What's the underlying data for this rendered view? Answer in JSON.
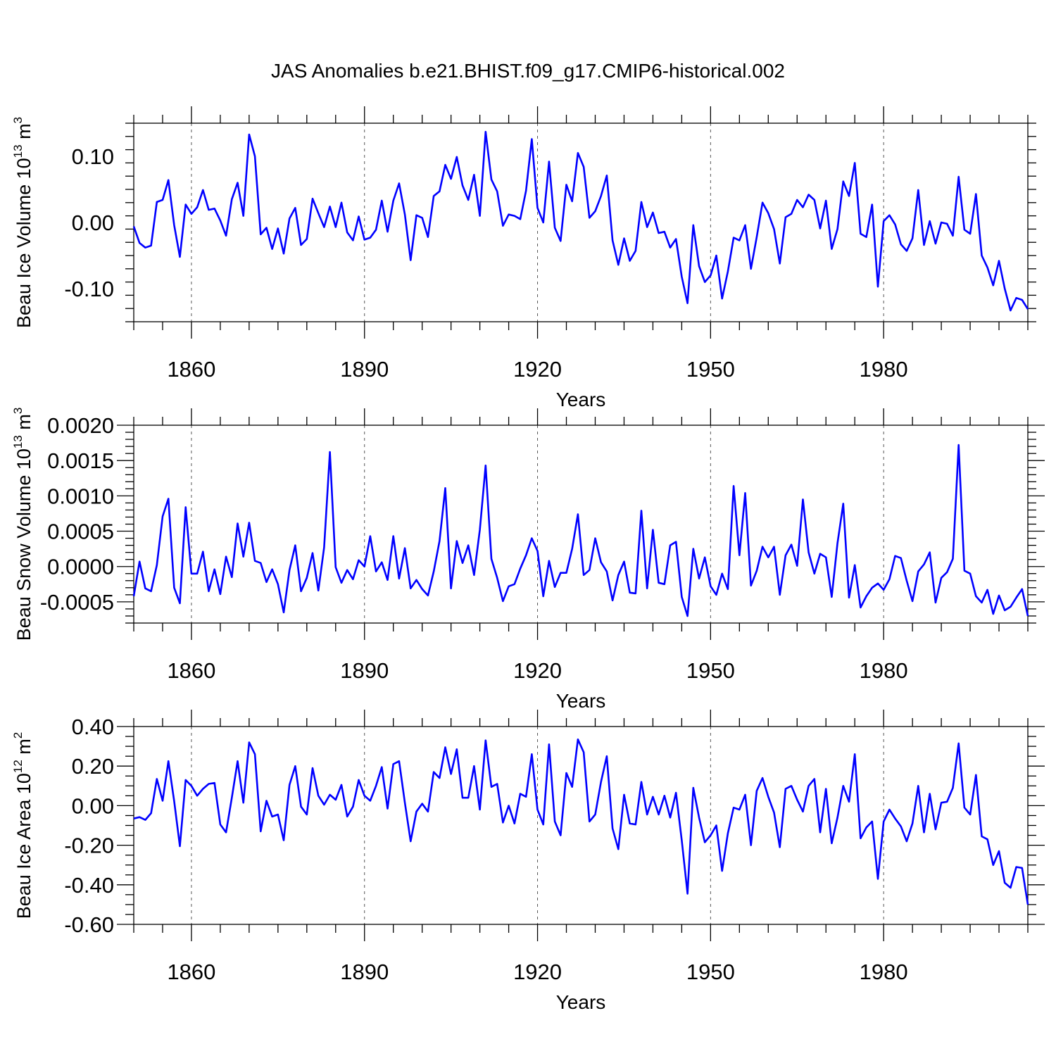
{
  "title": "JAS Anomalies b.e21.BHIST.f09_g17.CMIP6-historical.002",
  "colors": {
    "line": "#0000ff",
    "axis": "#000000",
    "grid": "#555555"
  },
  "chart_data": [
    {
      "type": "line",
      "ylabel_main": "Beau Ice Volume 10",
      "ylabel_sup": "13",
      "ylabel_unit": " m",
      "ylabel_unit_sup": "3",
      "xlabel": "Years",
      "xlim": [
        1850,
        2005
      ],
      "ylim": [
        -0.15,
        0.15
      ],
      "xticks": [
        1860,
        1890,
        1920,
        1950,
        1980
      ],
      "xtick_labels": [
        "1860",
        "1890",
        "1920",
        "1950",
        "1980"
      ],
      "xminor_step": 5,
      "yticks": [
        -0.1,
        0.0,
        0.1
      ],
      "ytick_labels": [
        "-0.10",
        "0.00",
        "0.10"
      ],
      "yminor_step": 0.02,
      "x": [
        1850,
        1851,
        1852,
        1853,
        1854,
        1855,
        1856,
        1857,
        1858,
        1859,
        1860,
        1861,
        1862,
        1863,
        1864,
        1865,
        1866,
        1867,
        1868,
        1869,
        1870,
        1871,
        1872,
        1873,
        1874,
        1875,
        1876,
        1877,
        1878,
        1879,
        1880,
        1881,
        1882,
        1883,
        1884,
        1885,
        1886,
        1887,
        1888,
        1889,
        1890,
        1891,
        1892,
        1893,
        1894,
        1895,
        1896,
        1897,
        1898,
        1899,
        1900,
        1901,
        1902,
        1903,
        1904,
        1905,
        1906,
        1907,
        1908,
        1909,
        1910,
        1911,
        1912,
        1913,
        1914,
        1915,
        1916,
        1917,
        1918,
        1919,
        1920,
        1921,
        1922,
        1923,
        1924,
        1925,
        1926,
        1927,
        1928,
        1929,
        1930,
        1931,
        1932,
        1933,
        1934,
        1935,
        1936,
        1937,
        1938,
        1939,
        1940,
        1941,
        1942,
        1943,
        1944,
        1945,
        1946,
        1947,
        1948,
        1949,
        1950,
        1951,
        1952,
        1953,
        1954,
        1955,
        1956,
        1957,
        1958,
        1959,
        1960,
        1961,
        1962,
        1963,
        1964,
        1965,
        1966,
        1967,
        1968,
        1969,
        1970,
        1971,
        1972,
        1973,
        1974,
        1975,
        1976,
        1977,
        1978,
        1979,
        1980,
        1981,
        1982,
        1983,
        1984,
        1985,
        1986,
        1987,
        1988,
        1989,
        1990,
        1991,
        1992,
        1993,
        1994,
        1995,
        1996,
        1997,
        1998,
        1999,
        2000,
        2001,
        2002,
        2003,
        2004,
        2005
      ],
      "values": [
        -0.006,
        -0.031,
        -0.038,
        -0.035,
        0.031,
        0.034,
        0.064,
        -0.004,
        -0.052,
        0.027,
        0.013,
        0.023,
        0.049,
        0.019,
        0.021,
        0.003,
        -0.02,
        0.035,
        0.06,
        0.01,
        0.133,
        0.1,
        -0.018,
        -0.008,
        -0.04,
        -0.009,
        -0.047,
        0.006,
        0.022,
        -0.034,
        -0.025,
        0.036,
        0.014,
        -0.007,
        0.024,
        -0.007,
        0.03,
        -0.015,
        -0.027,
        0.009,
        -0.026,
        -0.023,
        -0.011,
        0.033,
        -0.014,
        0.033,
        0.059,
        0.012,
        -0.057,
        0.011,
        0.007,
        -0.022,
        0.04,
        0.047,
        0.087,
        0.066,
        0.099,
        0.056,
        0.034,
        0.072,
        0.01,
        0.137,
        0.065,
        0.047,
        -0.005,
        0.012,
        0.01,
        0.005,
        0.048,
        0.126,
        0.022,
        0.0,
        0.092,
        -0.008,
        -0.028,
        0.057,
        0.032,
        0.105,
        0.084,
        0.007,
        0.017,
        0.04,
        0.071,
        -0.027,
        -0.064,
        -0.024,
        -0.058,
        -0.043,
        0.031,
        -0.007,
        0.015,
        -0.016,
        -0.014,
        -0.038,
        -0.025,
        -0.082,
        -0.122,
        -0.004,
        -0.066,
        -0.09,
        -0.08,
        -0.05,
        -0.115,
        -0.074,
        -0.023,
        -0.027,
        -0.004,
        -0.07,
        -0.022,
        0.03,
        0.014,
        -0.01,
        -0.062,
        0.008,
        0.013,
        0.034,
        0.023,
        0.042,
        0.034,
        -0.009,
        0.033,
        -0.04,
        -0.01,
        0.062,
        0.04,
        0.09,
        -0.017,
        -0.022,
        0.027,
        -0.097,
        0.002,
        0.011,
        -0.003,
        -0.033,
        -0.043,
        -0.024,
        0.049,
        -0.034,
        0.002,
        -0.032,
        0.0,
        -0.002,
        -0.02,
        0.069,
        -0.011,
        -0.017,
        0.043,
        -0.05,
        -0.068,
        -0.095,
        -0.058,
        -0.1,
        -0.133,
        -0.114,
        -0.117,
        -0.131
      ]
    },
    {
      "type": "line",
      "ylabel_main": "Beau Snow Volume 10",
      "ylabel_sup": "13",
      "ylabel_unit": " m",
      "ylabel_unit_sup": "3",
      "xlabel": "Years",
      "xlim": [
        1850,
        2005
      ],
      "ylim": [
        -0.0008,
        0.002
      ],
      "xticks": [
        1860,
        1890,
        1920,
        1950,
        1980
      ],
      "xtick_labels": [
        "1860",
        "1890",
        "1920",
        "1950",
        "1980"
      ],
      "xminor_step": 5,
      "yticks": [
        -0.0005,
        0.0,
        0.0005,
        0.001,
        0.0015,
        0.002
      ],
      "ytick_labels": [
        "-0.0005",
        "0.0000",
        "0.0005",
        "0.0010",
        "0.0015",
        "0.0020"
      ],
      "yminor_step": 0.0001,
      "x": [
        1850,
        1851,
        1852,
        1853,
        1854,
        1855,
        1856,
        1857,
        1858,
        1859,
        1860,
        1861,
        1862,
        1863,
        1864,
        1865,
        1866,
        1867,
        1868,
        1869,
        1870,
        1871,
        1872,
        1873,
        1874,
        1875,
        1876,
        1877,
        1878,
        1879,
        1880,
        1881,
        1882,
        1883,
        1884,
        1885,
        1886,
        1887,
        1888,
        1889,
        1890,
        1891,
        1892,
        1893,
        1894,
        1895,
        1896,
        1897,
        1898,
        1899,
        1900,
        1901,
        1902,
        1903,
        1904,
        1905,
        1906,
        1907,
        1908,
        1909,
        1910,
        1911,
        1912,
        1913,
        1914,
        1915,
        1916,
        1917,
        1918,
        1919,
        1920,
        1921,
        1922,
        1923,
        1924,
        1925,
        1926,
        1927,
        1928,
        1929,
        1930,
        1931,
        1932,
        1933,
        1934,
        1935,
        1936,
        1937,
        1938,
        1939,
        1940,
        1941,
        1942,
        1943,
        1944,
        1945,
        1946,
        1947,
        1948,
        1949,
        1950,
        1951,
        1952,
        1953,
        1954,
        1955,
        1956,
        1957,
        1958,
        1959,
        1960,
        1961,
        1962,
        1963,
        1964,
        1965,
        1966,
        1967,
        1968,
        1969,
        1970,
        1971,
        1972,
        1973,
        1974,
        1975,
        1976,
        1977,
        1978,
        1979,
        1980,
        1981,
        1982,
        1983,
        1984,
        1985,
        1986,
        1987,
        1988,
        1989,
        1990,
        1991,
        1992,
        1993,
        1994,
        1995,
        1996,
        1997,
        1998,
        1999,
        2000,
        2001,
        2002,
        2003,
        2004,
        2005
      ],
      "values": [
        -0.00042,
        7e-05,
        -0.00031,
        -0.00035,
        2e-05,
        0.00071,
        0.00096,
        -0.0003,
        -0.00052,
        0.00084,
        -0.0001,
        -0.0001,
        0.00021,
        -0.00035,
        -4e-05,
        -0.00039,
        0.00014,
        -0.00015,
        0.00061,
        0.00014,
        0.00062,
        8e-05,
        5e-05,
        -0.00022,
        -4e-05,
        -0.00025,
        -0.00065,
        -5e-05,
        0.0003,
        -0.00035,
        -0.00016,
        0.00019,
        -0.00034,
        0.00027,
        0.00162,
        -1e-05,
        -0.00023,
        -5e-05,
        -0.00018,
        9e-05,
        0.0,
        0.00043,
        -7e-05,
        6e-05,
        -0.00019,
        0.00043,
        -0.00017,
        0.00026,
        -0.00031,
        -0.00019,
        -0.00032,
        -0.00041,
        -7e-05,
        0.00036,
        0.00111,
        -0.00031,
        0.00036,
        5e-05,
        0.0003,
        -0.00012,
        0.00052,
        0.00143,
        0.00011,
        -0.00016,
        -0.00049,
        -0.00028,
        -0.00025,
        -3e-05,
        0.00016,
        0.0004,
        0.00022,
        -0.00042,
        8e-05,
        -0.00029,
        -9e-05,
        -9e-05,
        0.00025,
        0.00074,
        -0.00012,
        -5e-05,
        0.0004,
        6e-05,
        -7e-05,
        -0.00048,
        -0.00012,
        7e-05,
        -0.00037,
        -0.00038,
        0.00079,
        -0.00031,
        0.00052,
        -0.00023,
        -0.00025,
        0.0003,
        0.00035,
        -0.00043,
        -0.0007,
        0.00025,
        -0.00017,
        0.00013,
        -0.00028,
        -0.0004,
        -0.0001,
        -0.00032,
        0.00114,
        0.00016,
        0.00104,
        -0.00027,
        -6e-05,
        0.00028,
        0.00013,
        0.00028,
        -0.0004,
        0.00016,
        0.00031,
        1e-05,
        0.00095,
        0.0002,
        -0.0001,
        0.00018,
        0.00013,
        -0.00043,
        0.00033,
        0.00089,
        -0.00044,
        2e-05,
        -0.00058,
        -0.00042,
        -0.0003,
        -0.00024,
        -0.00033,
        -0.00018,
        0.00015,
        0.00012,
        -0.0002,
        -0.00049,
        -7e-05,
        3e-05,
        0.0002,
        -0.00051,
        -0.00016,
        -8e-05,
        0.00011,
        0.00172,
        -6e-05,
        -0.0001,
        -0.00042,
        -0.00051,
        -0.00033,
        -0.00067,
        -0.00041,
        -0.00062,
        -0.00057,
        -0.00044,
        -0.00032,
        -0.0007
      ]
    },
    {
      "type": "line",
      "ylabel_main": "Beau Ice Area 10",
      "ylabel_sup": "12",
      "ylabel_unit": " m",
      "ylabel_unit_sup": "2",
      "xlabel": "Years",
      "xlim": [
        1850,
        2005
      ],
      "ylim": [
        -0.6,
        0.4
      ],
      "xticks": [
        1860,
        1890,
        1920,
        1950,
        1980
      ],
      "xtick_labels": [
        "1860",
        "1890",
        "1920",
        "1950",
        "1980"
      ],
      "xminor_step": 5,
      "yticks": [
        -0.6,
        -0.4,
        -0.2,
        0.0,
        0.2,
        0.4
      ],
      "ytick_labels": [
        "-0.60",
        "-0.40",
        "-0.20",
        "0.00",
        "0.20",
        "0.40"
      ],
      "yminor_step": 0.05,
      "x": [
        1850,
        1851,
        1852,
        1853,
        1854,
        1855,
        1856,
        1857,
        1858,
        1859,
        1860,
        1861,
        1862,
        1863,
        1864,
        1865,
        1866,
        1867,
        1868,
        1869,
        1870,
        1871,
        1872,
        1873,
        1874,
        1875,
        1876,
        1877,
        1878,
        1879,
        1880,
        1881,
        1882,
        1883,
        1884,
        1885,
        1886,
        1887,
        1888,
        1889,
        1890,
        1891,
        1892,
        1893,
        1894,
        1895,
        1896,
        1897,
        1898,
        1899,
        1900,
        1901,
        1902,
        1903,
        1904,
        1905,
        1906,
        1907,
        1908,
        1909,
        1910,
        1911,
        1912,
        1913,
        1914,
        1915,
        1916,
        1917,
        1918,
        1919,
        1920,
        1921,
        1922,
        1923,
        1924,
        1925,
        1926,
        1927,
        1928,
        1929,
        1930,
        1931,
        1932,
        1933,
        1934,
        1935,
        1936,
        1937,
        1938,
        1939,
        1940,
        1941,
        1942,
        1943,
        1944,
        1945,
        1946,
        1947,
        1948,
        1949,
        1950,
        1951,
        1952,
        1953,
        1954,
        1955,
        1956,
        1957,
        1958,
        1959,
        1960,
        1961,
        1962,
        1963,
        1964,
        1965,
        1966,
        1967,
        1968,
        1969,
        1970,
        1971,
        1972,
        1973,
        1974,
        1975,
        1976,
        1977,
        1978,
        1979,
        1980,
        1981,
        1982,
        1983,
        1984,
        1985,
        1986,
        1987,
        1988,
        1989,
        1990,
        1991,
        1992,
        1993,
        1994,
        1995,
        1996,
        1997,
        1998,
        1999,
        2000,
        2001,
        2002,
        2003,
        2004,
        2005
      ],
      "values": [
        -0.065,
        -0.058,
        -0.072,
        -0.038,
        0.135,
        0.025,
        0.225,
        0.023,
        -0.205,
        0.13,
        0.1,
        0.05,
        0.085,
        0.11,
        0.115,
        -0.095,
        -0.135,
        0.04,
        0.225,
        0.015,
        0.32,
        0.26,
        -0.13,
        0.025,
        -0.055,
        -0.045,
        -0.175,
        0.105,
        0.2,
        -0.005,
        -0.045,
        0.19,
        0.05,
        0.005,
        0.055,
        0.03,
        0.105,
        -0.055,
        -0.005,
        0.13,
        0.05,
        0.025,
        0.1,
        0.195,
        -0.015,
        0.21,
        0.225,
        0.015,
        -0.18,
        -0.03,
        0.01,
        -0.03,
        0.17,
        0.14,
        0.295,
        0.16,
        0.285,
        0.04,
        0.04,
        0.2,
        -0.02,
        0.33,
        0.095,
        0.11,
        -0.085,
        0.0,
        -0.09,
        0.06,
        0.045,
        0.26,
        -0.02,
        -0.095,
        0.31,
        -0.08,
        -0.15,
        0.165,
        0.095,
        0.335,
        0.27,
        -0.08,
        -0.045,
        0.12,
        0.25,
        -0.115,
        -0.22,
        0.055,
        -0.09,
        -0.095,
        0.12,
        -0.045,
        0.045,
        -0.045,
        0.05,
        -0.06,
        0.065,
        -0.175,
        -0.445,
        0.09,
        -0.06,
        -0.185,
        -0.15,
        -0.1,
        -0.33,
        -0.14,
        -0.01,
        -0.02,
        0.055,
        -0.2,
        0.075,
        0.14,
        0.045,
        -0.035,
        -0.21,
        0.085,
        0.1,
        0.03,
        -0.03,
        0.1,
        0.135,
        -0.135,
        0.085,
        -0.19,
        -0.06,
        0.1,
        0.02,
        0.26,
        -0.165,
        -0.11,
        -0.08,
        -0.37,
        -0.08,
        -0.02,
        -0.065,
        -0.105,
        -0.18,
        -0.09,
        0.1,
        -0.135,
        0.06,
        -0.12,
        0.015,
        0.02,
        0.09,
        0.315,
        -0.01,
        -0.045,
        0.155,
        -0.155,
        -0.17,
        -0.3,
        -0.23,
        -0.39,
        -0.415,
        -0.31,
        -0.315,
        -0.5
      ]
    }
  ]
}
